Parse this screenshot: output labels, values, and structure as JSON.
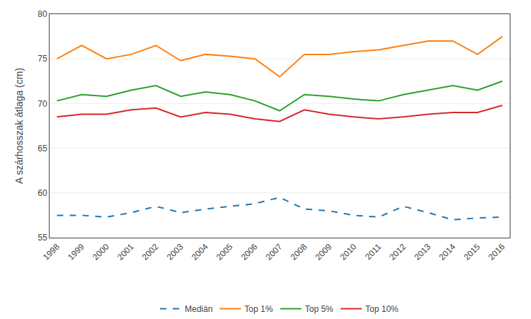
{
  "chart_data": {
    "type": "line",
    "x": [
      1998,
      1999,
      2000,
      2001,
      2002,
      2003,
      2004,
      2005,
      2006,
      2007,
      2008,
      2009,
      2010,
      2011,
      2012,
      2013,
      2014,
      2015,
      2016
    ],
    "series": [
      {
        "name": "Medián",
        "line_style": "dashed",
        "values": [
          57.5,
          57.5,
          57.3,
          57.8,
          58.5,
          57.8,
          58.2,
          58.5,
          58.8,
          59.5,
          58.2,
          58.0,
          57.5,
          57.3,
          58.5,
          57.8,
          57.0,
          57.2,
          57.3
        ]
      },
      {
        "name": "Top 1%",
        "line_style": "solid",
        "values": [
          75.0,
          76.5,
          75.0,
          75.5,
          76.5,
          74.8,
          75.5,
          75.3,
          75.0,
          73.0,
          75.5,
          75.5,
          75.8,
          76.0,
          76.5,
          77.0,
          77.0,
          75.5,
          77.5
        ]
      },
      {
        "name": "Top 5%",
        "line_style": "solid",
        "values": [
          70.3,
          71.0,
          70.8,
          71.5,
          72.0,
          70.8,
          71.3,
          71.0,
          70.3,
          69.2,
          71.0,
          70.8,
          70.5,
          70.3,
          71.0,
          71.5,
          72.0,
          71.5,
          72.5
        ]
      },
      {
        "name": "Top 10%",
        "line_style": "solid",
        "values": [
          68.5,
          68.8,
          68.8,
          69.3,
          69.5,
          68.5,
          69.0,
          68.8,
          68.3,
          68.0,
          69.3,
          68.8,
          68.5,
          68.3,
          68.5,
          68.8,
          69.0,
          69.0,
          69.8
        ]
      }
    ],
    "ylabel": "A szárhosszak átlaga (cm)",
    "xlim": [
      1997.7,
      2016.3
    ],
    "xticks": [
      1998,
      1999,
      2000,
      2001,
      2002,
      2003,
      2004,
      2005,
      2006,
      2007,
      2008,
      2009,
      2010,
      2011,
      2012,
      2013,
      2014,
      2015,
      2016
    ],
    "ylim": [
      55,
      80
    ],
    "yticks": [
      55,
      60,
      65,
      70,
      75,
      80
    ],
    "grid": true,
    "legend": "bottom"
  }
}
